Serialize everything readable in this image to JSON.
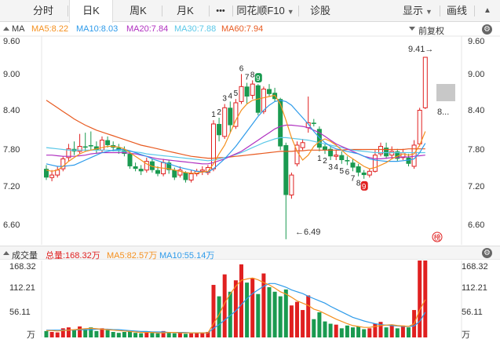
{
  "tabs": [
    {
      "label": "分时"
    },
    {
      "label": "日K"
    },
    {
      "label": "周K"
    },
    {
      "label": "月K"
    },
    {
      "label": "•••"
    },
    {
      "label": "同花顺F10"
    },
    {
      "label": "诊股"
    }
  ],
  "right_menu": {
    "display_label": "显示",
    "draw_label": "画线"
  },
  "indicator": {
    "name": "MA",
    "ma5": "MA5:8.22",
    "ma10": "MA10:8.03",
    "ma20": "MA20:7.84",
    "ma30": "MA30:7.88",
    "ma60": "MA60:7.94",
    "adjust": "前复权"
  },
  "price_axis": {
    "labels_left": [
      "9.60",
      "9.00",
      "8.40",
      "7.80",
      "7.20",
      "6.60"
    ],
    "labels_right": [
      "9.60",
      "9.00",
      "8.40",
      "7.80",
      "7.20",
      "6.60"
    ]
  },
  "annotations": {
    "high_label": "9.41→",
    "low_label": "←6.49",
    "current_label": "8...",
    "sequence_up": [
      "1",
      "2",
      "3",
      "4",
      "5",
      "6",
      "7",
      "8",
      "9"
    ],
    "sequence_down": [
      "1",
      "2",
      "3",
      "4",
      "5",
      "6",
      "7",
      "8",
      "9"
    ],
    "bang_label": "榜"
  },
  "volume": {
    "title": "成交量",
    "total": "总量:168.32万",
    "ma5": "MA5:82.57万",
    "ma10": "MA10:55.14万",
    "axis_labels_left": [
      "168.32",
      "112.21",
      "56.11",
      "万"
    ],
    "axis_labels_right": [
      "168.32",
      "112.21",
      "56.11",
      "万"
    ]
  },
  "colors": {
    "up": "#e02020",
    "down": "#1a9a50",
    "ma5": "#f5901e",
    "ma10": "#2e9bea",
    "ma20": "#b030c0",
    "ma30": "#5bc8e8",
    "ma60": "#e85a20"
  },
  "chart_data": {
    "type": "candlestick",
    "ylim": [
      6.4,
      9.75
    ],
    "candles": [
      [
        7.62,
        7.48,
        7.68,
        7.44
      ],
      [
        7.48,
        7.52,
        7.6,
        7.42
      ],
      [
        7.52,
        7.6,
        7.66,
        7.48
      ],
      [
        7.62,
        7.78,
        7.82,
        7.58
      ],
      [
        7.8,
        7.94,
        8.02,
        7.74
      ],
      [
        7.94,
        7.9,
        8.06,
        7.84
      ],
      [
        7.9,
        7.98,
        8.18,
        7.86
      ],
      [
        7.98,
        7.96,
        8.2,
        7.9
      ],
      [
        8.0,
        7.98,
        8.22,
        7.92
      ],
      [
        7.98,
        7.92,
        8.06,
        7.86
      ],
      [
        7.92,
        8.08,
        8.14,
        7.88
      ],
      [
        8.08,
        8.0,
        8.14,
        7.96
      ],
      [
        8.0,
        7.96,
        8.06,
        7.9
      ],
      [
        7.96,
        7.92,
        8.02,
        7.86
      ],
      [
        7.92,
        7.86,
        7.98,
        7.82
      ],
      [
        7.86,
        7.66,
        7.9,
        7.62
      ],
      [
        7.66,
        7.62,
        7.72,
        7.58
      ],
      [
        7.62,
        7.58,
        7.68,
        7.52
      ],
      [
        7.6,
        7.74,
        7.8,
        7.56
      ],
      [
        7.74,
        7.6,
        7.78,
        7.56
      ],
      [
        7.6,
        7.54,
        7.66,
        7.5
      ],
      [
        7.54,
        7.72,
        7.78,
        7.5
      ],
      [
        7.72,
        7.6,
        7.76,
        7.54
      ],
      [
        7.6,
        7.48,
        7.64,
        7.44
      ],
      [
        7.52,
        7.6,
        7.66,
        7.48
      ],
      [
        7.56,
        7.44,
        7.58,
        7.4
      ],
      [
        7.44,
        7.54,
        7.6,
        7.4
      ],
      [
        7.54,
        7.58,
        7.62,
        7.5
      ],
      [
        7.58,
        7.6,
        7.66,
        7.52
      ],
      [
        7.56,
        7.64,
        7.68,
        7.52
      ],
      [
        7.62,
        8.34,
        8.4,
        7.58
      ],
      [
        8.34,
        8.16,
        8.44,
        8.06
      ],
      [
        8.14,
        8.6,
        8.66,
        8.1
      ],
      [
        8.6,
        8.32,
        8.7,
        8.2
      ],
      [
        8.3,
        8.68,
        8.74,
        8.26
      ],
      [
        8.7,
        8.94,
        9.14,
        8.66
      ],
      [
        8.94,
        8.78,
        9.0,
        8.66
      ],
      [
        8.8,
        8.98,
        9.04,
        8.74
      ],
      [
        8.96,
        8.52,
        8.98,
        8.48
      ],
      [
        8.54,
        8.9,
        8.94,
        8.5
      ],
      [
        8.9,
        8.82,
        8.98,
        8.78
      ],
      [
        8.84,
        8.74,
        8.92,
        8.7
      ],
      [
        8.74,
        7.98,
        8.76,
        7.92
      ],
      [
        8.0,
        7.2,
        8.04,
        6.49
      ],
      [
        7.2,
        7.52,
        7.56,
        7.14
      ],
      [
        7.7,
        8.0,
        8.06,
        7.66
      ],
      [
        7.96,
        8.04,
        8.1,
        7.92
      ],
      [
        8.28,
        8.36,
        8.78,
        8.2
      ],
      [
        8.36,
        8.34,
        8.42,
        8.3
      ],
      [
        8.26,
        7.96,
        8.3,
        7.9
      ],
      [
        7.98,
        7.92,
        8.02,
        7.86
      ],
      [
        7.94,
        7.82,
        7.98,
        7.76
      ],
      [
        7.82,
        7.84,
        7.92,
        7.76
      ],
      [
        7.84,
        7.76,
        7.9,
        7.7
      ],
      [
        7.76,
        7.74,
        7.82,
        7.68
      ],
      [
        7.72,
        7.64,
        7.78,
        7.58
      ],
      [
        7.66,
        7.56,
        7.7,
        7.5
      ],
      [
        7.56,
        7.52,
        7.6,
        7.46
      ],
      [
        7.52,
        7.58,
        7.62,
        7.48
      ],
      [
        7.58,
        7.84,
        7.92,
        7.56
      ],
      [
        7.86,
        7.98,
        8.04,
        7.82
      ],
      [
        7.96,
        7.82,
        8.04,
        7.78
      ],
      [
        7.84,
        7.9,
        7.98,
        7.78
      ],
      [
        7.9,
        7.78,
        7.94,
        7.74
      ],
      [
        7.8,
        7.88,
        7.94,
        7.76
      ],
      [
        7.8,
        7.7,
        7.86,
        7.66
      ],
      [
        7.66,
        8.0,
        8.08,
        7.62
      ],
      [
        8.02,
        8.56,
        8.6,
        7.98
      ],
      [
        8.6,
        9.41,
        9.41,
        8.58
      ]
    ],
    "ma5": [
      7.6,
      7.58,
      7.6,
      7.66,
      7.74,
      7.8,
      7.86,
      7.9,
      7.92,
      7.94,
      7.96,
      7.98,
      7.98,
      7.97,
      7.94,
      7.88,
      7.82,
      7.76,
      7.7,
      7.66,
      7.64,
      7.63,
      7.62,
      7.6,
      7.58,
      7.56,
      7.55,
      7.55,
      7.57,
      7.58,
      7.7,
      7.86,
      8.0,
      8.2,
      8.4,
      8.56,
      8.66,
      8.72,
      8.74,
      8.76,
      8.78,
      8.8,
      8.66,
      8.4,
      8.12,
      7.9,
      7.76,
      7.84,
      7.98,
      8.06,
      8.1,
      8.06,
      8.0,
      7.92,
      7.84,
      7.78,
      7.72,
      7.66,
      7.62,
      7.64,
      7.68,
      7.72,
      7.78,
      7.82,
      7.86,
      7.84,
      7.86,
      8.0,
      8.22
    ],
    "ma10": [
      7.7,
      7.68,
      7.66,
      7.66,
      7.67,
      7.68,
      7.72,
      7.76,
      7.8,
      7.84,
      7.88,
      7.9,
      7.92,
      7.93,
      7.93,
      7.91,
      7.88,
      7.85,
      7.82,
      7.78,
      7.75,
      7.72,
      7.7,
      7.67,
      7.64,
      7.62,
      7.6,
      7.58,
      7.57,
      7.57,
      7.62,
      7.7,
      7.78,
      7.88,
      7.98,
      8.1,
      8.22,
      8.34,
      8.46,
      8.56,
      8.64,
      8.7,
      8.72,
      8.7,
      8.64,
      8.54,
      8.44,
      8.34,
      8.22,
      8.12,
      8.04,
      7.98,
      7.94,
      7.92,
      7.9,
      7.88,
      7.86,
      7.82,
      7.78,
      7.76,
      7.75,
      7.74,
      7.74,
      7.74,
      7.75,
      7.76,
      7.78,
      7.88,
      8.03
    ],
    "ma20": [
      7.84,
      7.84,
      7.83,
      7.82,
      7.82,
      7.82,
      7.83,
      7.84,
      7.86,
      7.87,
      7.88,
      7.88,
      7.88,
      7.88,
      7.88,
      7.87,
      7.86,
      7.84,
      7.82,
      7.8,
      7.78,
      7.77,
      7.76,
      7.75,
      7.74,
      7.73,
      7.72,
      7.71,
      7.7,
      7.7,
      7.72,
      7.75,
      7.78,
      7.82,
      7.86,
      7.9,
      7.96,
      8.02,
      8.08,
      8.14,
      8.2,
      8.26,
      8.3,
      8.32,
      8.32,
      8.31,
      8.3,
      8.28,
      8.24,
      8.2,
      8.14,
      8.08,
      8.02,
      7.98,
      7.94,
      7.9,
      7.86,
      7.82,
      7.8,
      7.78,
      7.78,
      7.79,
      7.8,
      7.8,
      7.81,
      7.81,
      7.82,
      7.83,
      7.84
    ],
    "ma30": [
      7.96,
      7.95,
      7.94,
      7.93,
      7.92,
      7.92,
      7.92,
      7.92,
      7.92,
      7.92,
      7.92,
      7.92,
      7.91,
      7.91,
      7.9,
      7.9,
      7.89,
      7.88,
      7.86,
      7.85,
      7.84,
      7.83,
      7.82,
      7.81,
      7.8,
      7.79,
      7.78,
      7.77,
      7.76,
      7.75,
      7.76,
      7.78,
      7.8,
      7.82,
      7.85,
      7.88,
      7.92,
      7.96,
      8.0,
      8.04,
      8.07,
      8.1,
      8.12,
      8.12,
      8.11,
      8.1,
      8.09,
      8.08,
      8.06,
      8.04,
      8.02,
      8.0,
      7.98,
      7.96,
      7.94,
      7.92,
      7.91,
      7.9,
      7.89,
      7.88,
      7.88,
      7.88,
      7.88,
      7.88,
      7.88,
      7.88,
      7.88,
      7.88,
      7.88
    ],
    "ma60": [
      8.72,
      8.66,
      8.6,
      8.54,
      8.48,
      8.42,
      8.37,
      8.32,
      8.28,
      8.24,
      8.21,
      8.18,
      8.15,
      8.12,
      8.09,
      8.06,
      8.03,
      8.0,
      7.98,
      7.96,
      7.94,
      7.92,
      7.9,
      7.88,
      7.86,
      7.84,
      7.82,
      7.81,
      7.8,
      7.79,
      7.79,
      7.8,
      7.8,
      7.81,
      7.82,
      7.83,
      7.84,
      7.85,
      7.86,
      7.87,
      7.88,
      7.89,
      7.9,
      7.9,
      7.9,
      7.91,
      7.91,
      7.92,
      7.92,
      7.92,
      7.92,
      7.92,
      7.92,
      7.92,
      7.93,
      7.93,
      7.93,
      7.93,
      7.93,
      7.93,
      7.93,
      7.93,
      7.93,
      7.93,
      7.93,
      7.94,
      7.94,
      7.94,
      7.94
    ],
    "volume_ylim": [
      0,
      168.32
    ],
    "volume": [
      14,
      12,
      11,
      20,
      22,
      16,
      24,
      18,
      22,
      14,
      20,
      16,
      12,
      10,
      12,
      14,
      10,
      9,
      12,
      10,
      9,
      14,
      10,
      9,
      10,
      8,
      9,
      10,
      11,
      12,
      115,
      90,
      138,
      100,
      125,
      160,
      120,
      130,
      95,
      140,
      110,
      100,
      90,
      105,
      70,
      78,
      60,
      92,
      40,
      55,
      35,
      30,
      28,
      20,
      26,
      22,
      24,
      18,
      20,
      30,
      34,
      22,
      28,
      20,
      26,
      22,
      60,
      168.32,
      168.32
    ],
    "vol_ma5": [
      15,
      15,
      14,
      15,
      16,
      17,
      18,
      19,
      20,
      19,
      18,
      17,
      16,
      15,
      14,
      13,
      12,
      11,
      11,
      11,
      10,
      10,
      11,
      11,
      10,
      10,
      10,
      10,
      10,
      10,
      30,
      50,
      75,
      95,
      112,
      125,
      128,
      130,
      126,
      120,
      115,
      108,
      100,
      95,
      88,
      80,
      75,
      70,
      62,
      58,
      52,
      46,
      40,
      35,
      30,
      26,
      24,
      22,
      22,
      24,
      26,
      27,
      28,
      26,
      25,
      24,
      30,
      60,
      82.57
    ],
    "vol_ma10": [
      16,
      16,
      16,
      16,
      16,
      16,
      17,
      17,
      17,
      18,
      18,
      18,
      17,
      17,
      16,
      15,
      14,
      13,
      13,
      12,
      12,
      12,
      11,
      11,
      11,
      11,
      10,
      10,
      10,
      10,
      20,
      28,
      38,
      48,
      58,
      72,
      85,
      96,
      104,
      112,
      118,
      118,
      114,
      110,
      104,
      100,
      96,
      90,
      85,
      80,
      75,
      68,
      62,
      56,
      50,
      44,
      40,
      36,
      33,
      30,
      28,
      27,
      26,
      25,
      24,
      24,
      25,
      35,
      55.14
    ]
  }
}
